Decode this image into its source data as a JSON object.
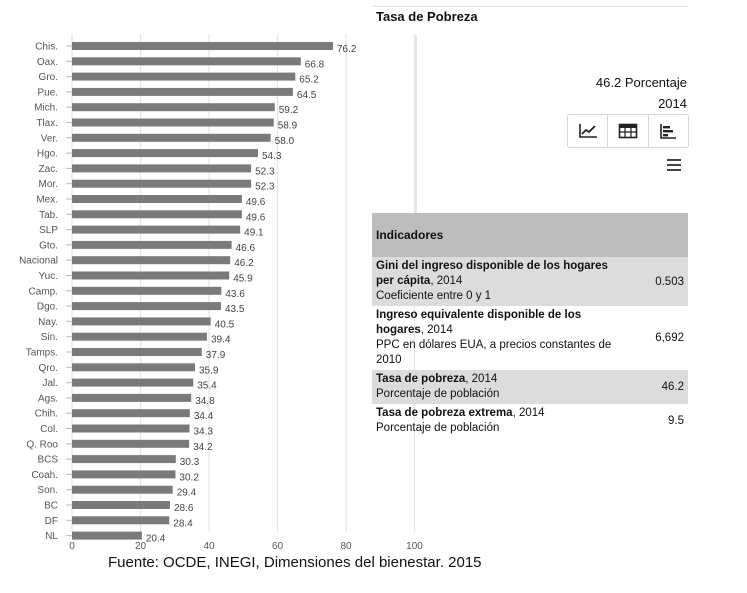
{
  "chart_data": {
    "type": "bar",
    "orientation": "horizontal",
    "categories": [
      "Chis.",
      "Oax.",
      "Gro.",
      "Pue.",
      "Mich.",
      "Tlax.",
      "Ver.",
      "Hgo.",
      "Zac.",
      "Mor.",
      "Mex.",
      "Tab.",
      "SLP",
      "Gto.",
      "Nacional",
      "Yuc.",
      "Camp.",
      "Dgo.",
      "Nay.",
      "Sin.",
      "Tamps.",
      "Qro.",
      "Jal.",
      "Ags.",
      "Chih.",
      "Col.",
      "Q. Roo",
      "BCS",
      "Coah.",
      "Son.",
      "BC",
      "DF",
      "NL"
    ],
    "values": [
      76.2,
      66.8,
      65.2,
      64.5,
      59.2,
      58.9,
      58.0,
      54.3,
      52.3,
      52.3,
      49.6,
      49.6,
      49.1,
      46.6,
      46.2,
      45.9,
      43.6,
      43.5,
      40.5,
      39.4,
      37.9,
      35.9,
      35.4,
      34.8,
      34.4,
      34.3,
      34.2,
      30.3,
      30.2,
      29.4,
      28.6,
      28.4,
      20.4
    ],
    "value_labels": [
      "76.2",
      "66.8",
      "65.2",
      "64.5",
      "59.2",
      "58.9",
      "58.0",
      "54.3",
      "52.3",
      "52.3",
      "49.6",
      "49.6",
      "49.1",
      "46.6",
      "46.2",
      "45.9",
      "43.6",
      "43.5",
      "40.5",
      "39.4",
      "37.9",
      "35.9",
      "35.4",
      "34.8",
      "34.4",
      "34.3",
      "34.2",
      "30.3",
      "30.2",
      "29.4",
      "28.6",
      "28.4",
      "20.4"
    ],
    "xticks": [
      "0",
      "20",
      "40",
      "60",
      "80",
      "100"
    ],
    "xlim": [
      0,
      100
    ],
    "grid": true,
    "bar_color": "#7a7a7a",
    "title": "",
    "xlabel": "",
    "ylabel": ""
  },
  "panel": {
    "title": "Tasa de Pobreza",
    "value_line": "46.2 Porcentaje",
    "year_line": "2014",
    "tool_icons": [
      "line-chart-icon",
      "table-icon",
      "bar-chart-icon"
    ],
    "menu_icon": "hamburger-menu-icon"
  },
  "indicators": {
    "header": "Indicadores",
    "rows": [
      {
        "name": "Gini del ingreso disponible de los hogares per cápita",
        "year": ", 2014",
        "unit": "Coeficiente entre 0 y 1",
        "value": "0.503",
        "shaded": true
      },
      {
        "name": "Ingreso equivalente disponible de los hogares",
        "year": ", 2014",
        "unit": "PPC en dólares EUA, a precios constantes de 2010",
        "value": "6,692",
        "shaded": false
      },
      {
        "name": "Tasa de pobreza",
        "year": ", 2014",
        "unit": "Porcentaje de población",
        "value": "46.2",
        "shaded": true
      },
      {
        "name": "Tasa de pobreza extrema",
        "year": ", 2014",
        "unit": "Porcentaje de población",
        "value": "9.5",
        "shaded": false
      }
    ]
  },
  "source": "Fuente: OCDE, INEGI, Dimensiones del bienestar. 2015"
}
